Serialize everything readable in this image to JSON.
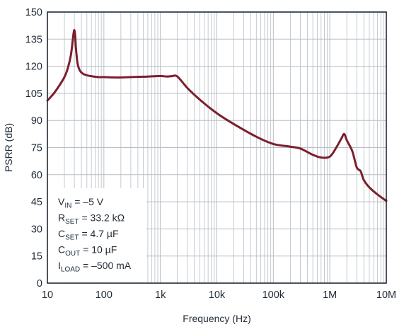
{
  "chart_data": {
    "type": "line",
    "xlabel": "Frequency (Hz)",
    "ylabel": "PSRR (dB)",
    "xscale": "log",
    "xlim": [
      10,
      10000000
    ],
    "ylim": [
      0,
      150
    ],
    "grid": true,
    "x_ticks": [
      {
        "value": 10,
        "label": "10"
      },
      {
        "value": 100,
        "label": "100"
      },
      {
        "value": 1000,
        "label": "1k"
      },
      {
        "value": 10000,
        "label": "10k"
      },
      {
        "value": 100000,
        "label": "100k"
      },
      {
        "value": 1000000,
        "label": "1M"
      },
      {
        "value": 10000000,
        "label": "10M"
      }
    ],
    "y_ticks": [
      0,
      15,
      30,
      45,
      60,
      75,
      90,
      105,
      120,
      135,
      150
    ],
    "line_color": "#7b1f2e",
    "grid_color": "#b7bec6",
    "frame_color": "#1f2a36",
    "series": [
      {
        "x": [
          10,
          13,
          16,
          20,
          23,
          26,
          28,
          29,
          30,
          31,
          32,
          34,
          37,
          42,
          50,
          60,
          80,
          100,
          150,
          200,
          300,
          500,
          700,
          1000,
          1300,
          1600,
          2000,
          3000,
          5000,
          10000,
          20000,
          50000,
          100000,
          200000,
          300000,
          500000,
          700000,
          1000000,
          1300000,
          1600000,
          1800000,
          2000000,
          2500000,
          3000000,
          3500000,
          4000000,
          5000000,
          7000000,
          10000000
        ],
        "y": [
          101,
          105,
          109,
          114,
          119,
          126,
          134,
          138,
          140,
          137,
          130,
          122,
          118,
          116,
          115,
          114.5,
          114,
          114,
          113.8,
          113.8,
          114,
          114.2,
          114.4,
          114.6,
          114.3,
          114.5,
          114.3,
          108,
          101.5,
          94,
          88,
          81,
          77,
          75.5,
          74.5,
          71,
          69.5,
          70,
          75,
          80,
          82.5,
          79,
          73,
          64,
          62,
          57,
          53,
          49,
          45.5
        ]
      }
    ],
    "annotations": [
      {
        "main": "V",
        "sub": "IN",
        "rest": " = –5 V"
      },
      {
        "main": "R",
        "sub": "SET",
        "rest": " = 33.2 kΩ"
      },
      {
        "main": "C",
        "sub": "SET",
        "rest": " = 4.7 µF"
      },
      {
        "main": "C",
        "sub": "OUT",
        "rest": " = 10 µF"
      },
      {
        "main": "I",
        "sub": "LOAD",
        "rest": " = –500 mA"
      }
    ]
  }
}
